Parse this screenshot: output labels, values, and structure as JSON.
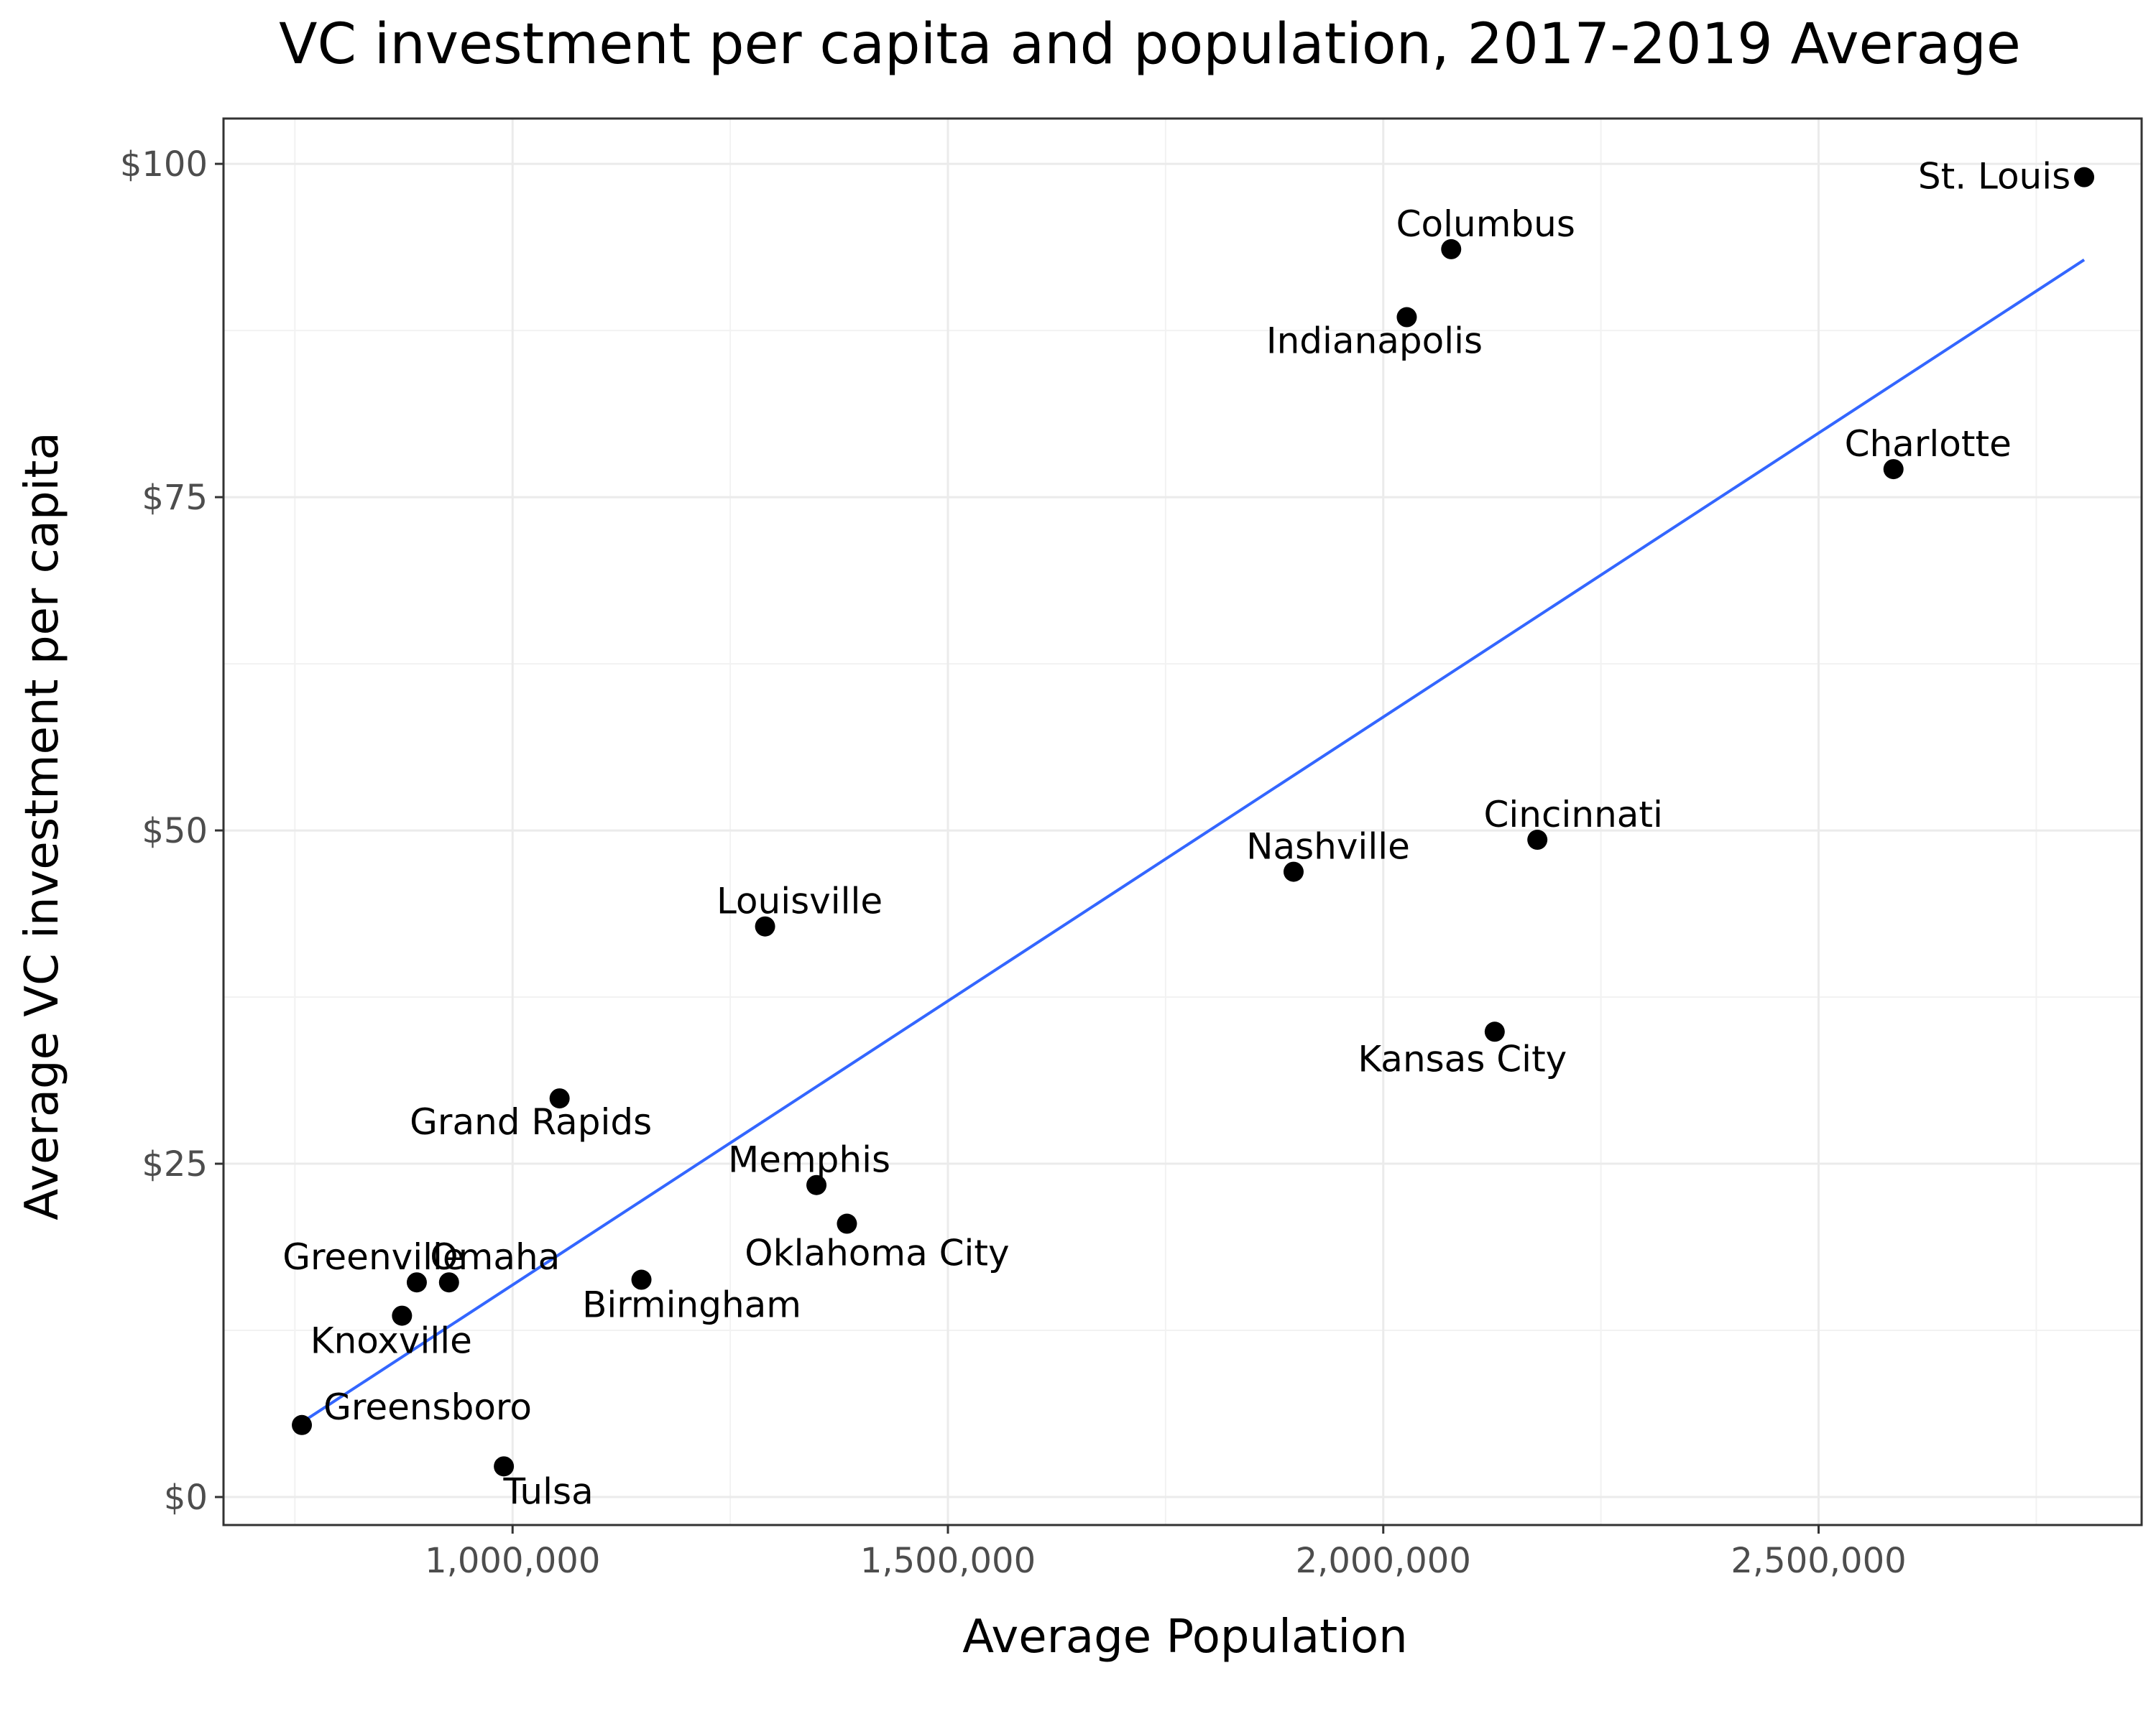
{
  "chart_data": {
    "type": "scatter",
    "title": "VC investment per capita and population, 2017-2019 Average",
    "xlabel": "Average Population",
    "ylabel": "Average VC investment per capita",
    "xlim": [
      668000,
      2871000
    ],
    "ylim": [
      -2.1,
      103.4
    ],
    "x_ticks": [
      1000000,
      1500000,
      2000000,
      2500000
    ],
    "x_tick_labels": [
      "1,000,000",
      "1,500,000",
      "2,000,000",
      "2,500,000"
    ],
    "y_ticks": [
      0,
      25,
      50,
      75,
      100
    ],
    "y_tick_labels": [
      "$0",
      "$25",
      "$50",
      "$75",
      "$100"
    ],
    "grid": true,
    "legend": "none",
    "point_color": "#000000",
    "trend_color": "#3366ff",
    "points": [
      {
        "label": "St. Louis",
        "x": 2805000,
        "y": 99.0
      },
      {
        "label": "Columbus",
        "x": 2078000,
        "y": 93.6
      },
      {
        "label": "Indianapolis",
        "x": 2027000,
        "y": 88.5
      },
      {
        "label": "Charlotte",
        "x": 2586000,
        "y": 77.1
      },
      {
        "label": "Cincinnati",
        "x": 2177000,
        "y": 49.3
      },
      {
        "label": "Nashville",
        "x": 1897000,
        "y": 46.9
      },
      {
        "label": "Louisville",
        "x": 1290000,
        "y": 42.8
      },
      {
        "label": "Kansas City",
        "x": 2128000,
        "y": 34.9
      },
      {
        "label": "Grand Rapids",
        "x": 1054000,
        "y": 29.9
      },
      {
        "label": "Memphis",
        "x": 1349000,
        "y": 23.4
      },
      {
        "label": "Oklahoma City",
        "x": 1384000,
        "y": 20.5
      },
      {
        "label": "Birmingham",
        "x": 1148000,
        "y": 16.3
      },
      {
        "label": "Greenville",
        "x": 890000,
        "y": 16.1
      },
      {
        "label": "Omaha",
        "x": 927000,
        "y": 16.1
      },
      {
        "label": "Knoxville",
        "x": 873000,
        "y": 13.6
      },
      {
        "label": "Greensboro",
        "x": 758000,
        "y": 5.4
      },
      {
        "label": "Tulsa",
        "x": 990000,
        "y": 2.3
      }
    ],
    "trend_line": {
      "x": [
        758000,
        2805000
      ],
      "y": [
        5.6,
        92.8
      ]
    }
  }
}
